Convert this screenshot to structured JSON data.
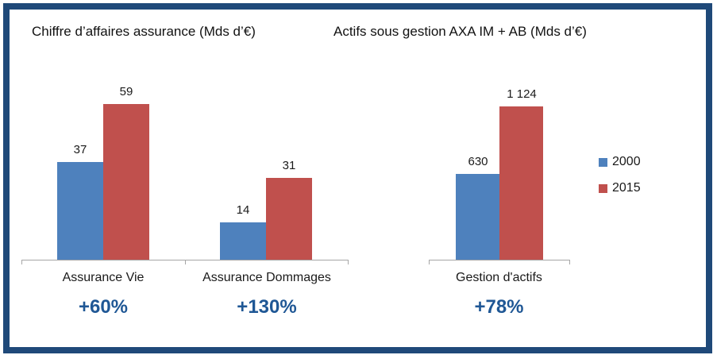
{
  "colors": {
    "frame": "#1f4979",
    "axis": "#a6a6a6",
    "growth_text": "#1f5795",
    "series": [
      "#4e81bd",
      "#c0504d"
    ]
  },
  "legend": {
    "items": [
      {
        "label": "2000",
        "color": "#4e81bd"
      },
      {
        "label": "2015",
        "color": "#c0504d"
      }
    ]
  },
  "chart_data": [
    {
      "type": "bar",
      "title": "Chiffre d’affaires assurance (Mds d’€)",
      "categories": [
        "Assurance Vie",
        "Assurance Dommages"
      ],
      "series": [
        {
          "name": "2000",
          "values": [
            37,
            14
          ],
          "labels": [
            "37",
            "14"
          ]
        },
        {
          "name": "2015",
          "values": [
            59,
            31
          ],
          "labels": [
            "59",
            "31"
          ]
        }
      ],
      "annotations": [
        "+60%",
        "+130%"
      ],
      "ylim": [
        0,
        59
      ],
      "grid": false,
      "legend_position": "shared-right"
    },
    {
      "type": "bar",
      "title": "Actifs sous gestion AXA IM + AB (Mds d’€)",
      "categories": [
        "Gestion d'actifs"
      ],
      "series": [
        {
          "name": "2000",
          "values": [
            630
          ],
          "labels": [
            "630"
          ]
        },
        {
          "name": "2015",
          "values": [
            1124
          ],
          "labels": [
            "1 124"
          ]
        }
      ],
      "annotations": [
        "+78%"
      ],
      "ylim": [
        0,
        1124
      ],
      "grid": false,
      "legend_position": "shared-right"
    }
  ]
}
